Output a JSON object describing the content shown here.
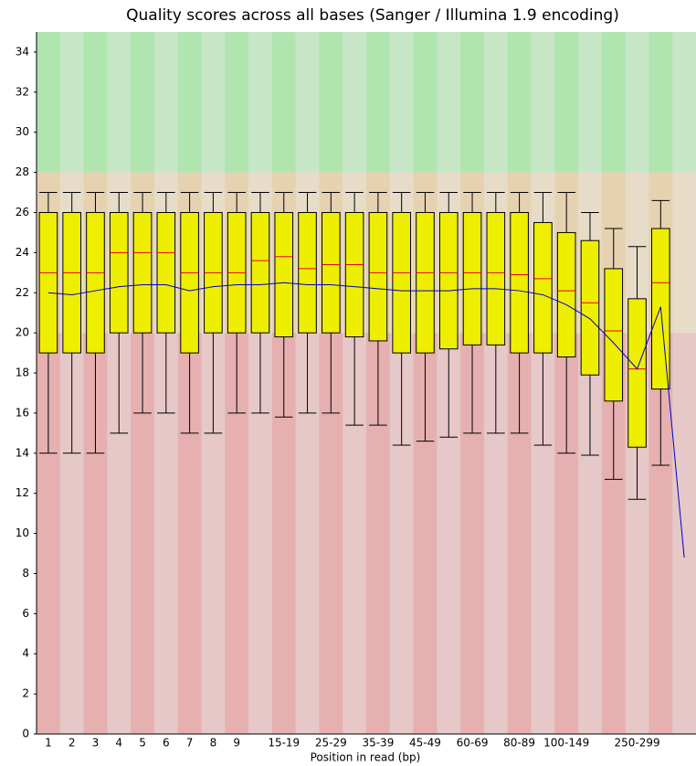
{
  "chart_data": {
    "type": "box",
    "title": "Quality scores across all bases (Sanger / Illumina 1.9 encoding)",
    "x_label": "Position in read (bp)",
    "categories": [
      "1",
      "2",
      "3",
      "4",
      "5",
      "6",
      "7",
      "8",
      "9",
      null,
      "15-19",
      null,
      "25-29",
      null,
      "35-39",
      null,
      "45-49",
      null,
      "60-69",
      null,
      "80-89",
      null,
      "100-149",
      null,
      null,
      "250-299",
      null,
      null
    ],
    "series": {
      "q1": [
        19,
        19,
        19,
        20,
        20,
        20,
        19,
        20,
        20,
        20,
        19.8,
        20,
        20,
        19.8,
        19.6,
        19,
        19,
        19.2,
        19.4,
        19.4,
        19,
        19,
        18.8,
        17.9,
        16.6,
        14.3,
        17.2,
        null
      ],
      "q3": [
        26,
        26,
        26,
        26,
        26,
        26,
        26,
        26,
        26,
        26,
        26,
        26,
        26,
        26,
        26,
        26,
        26,
        26,
        26,
        26,
        26,
        25.5,
        25,
        24.6,
        23.2,
        21.7,
        25.2,
        null
      ],
      "median": [
        23,
        23,
        23,
        24,
        24,
        24,
        23,
        23,
        23,
        23.6,
        23.8,
        23.2,
        23.4,
        23.4,
        23,
        23,
        23,
        23,
        23,
        23,
        22.9,
        22.7,
        22.1,
        21.5,
        20.1,
        18.2,
        22.5,
        null
      ],
      "low": [
        14,
        14,
        14,
        15,
        16,
        16,
        15,
        15,
        16,
        16,
        15.8,
        16,
        16,
        15.4,
        15.4,
        14.4,
        14.6,
        14.8,
        15,
        15,
        15,
        14.4,
        14,
        13.9,
        12.7,
        11.7,
        13.4,
        null
      ],
      "high": [
        27,
        27,
        27,
        27,
        27,
        27,
        27,
        27,
        27,
        27,
        27,
        27,
        27,
        27,
        27,
        27,
        27,
        27,
        27,
        27,
        27,
        27,
        27,
        26,
        25.2,
        24.3,
        26.6,
        null
      ],
      "mean": [
        22.0,
        21.9,
        22.1,
        22.3,
        22.4,
        22.4,
        22.1,
        22.3,
        22.4,
        22.4,
        22.5,
        22.4,
        22.4,
        22.3,
        22.2,
        22.1,
        22.1,
        22.1,
        22.2,
        22.2,
        22.1,
        21.9,
        21.4,
        20.7,
        19.5,
        18.2,
        21.3,
        8.8
      ]
    },
    "box_color": "#eeee00",
    "median_color": "#ee0000",
    "mean_color": "#0000cc",
    "bands": [
      {
        "from": 28,
        "to": 35,
        "colors": [
          "#b0e5b0",
          "#c6e6c6"
        ]
      },
      {
        "from": 20,
        "to": 28,
        "colors": [
          "#e6d2b0",
          "#e6dcc8"
        ]
      },
      {
        "from": 0,
        "to": 20,
        "colors": [
          "#e6b0b0",
          "#e6c8c8"
        ]
      }
    ],
    "ylim": [
      0,
      35
    ],
    "yticks": [
      0,
      2,
      4,
      6,
      8,
      10,
      12,
      14,
      16,
      18,
      20,
      22,
      24,
      26,
      28,
      30,
      32,
      34
    ]
  }
}
